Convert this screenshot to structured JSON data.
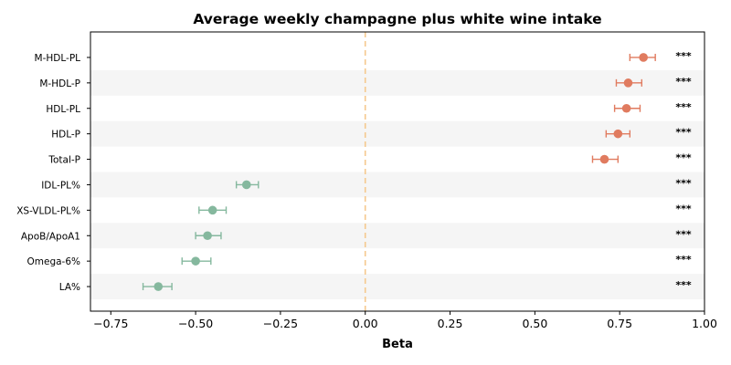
{
  "chart_data": {
    "type": "scatter",
    "subtype": "forest-plot",
    "title": "Average weekly champagne plus white wine intake",
    "xlabel": "Beta",
    "ylabel": "",
    "xlim": [
      -0.81,
      1.0
    ],
    "xticks": [
      -0.75,
      -0.5,
      -0.25,
      0.0,
      0.25,
      0.5,
      0.75,
      1.0
    ],
    "xtick_labels": [
      "−0.75",
      "−0.50",
      "−0.25",
      "0.00",
      "0.25",
      "0.50",
      "0.75",
      "1.00"
    ],
    "reference_line": 0.0,
    "reference_line_color": "#f5c98e",
    "positive_color": "#e07b5f",
    "negative_color": "#85b89e",
    "band_color": "#f5f5f5",
    "grid": false,
    "legend": "none",
    "items": [
      {
        "label": "M-HDL-PL",
        "beta": 0.82,
        "ci_low": 0.78,
        "ci_high": 0.855,
        "sig": "***"
      },
      {
        "label": "M-HDL-P",
        "beta": 0.775,
        "ci_low": 0.74,
        "ci_high": 0.815,
        "sig": "***"
      },
      {
        "label": "HDL-PL",
        "beta": 0.77,
        "ci_low": 0.735,
        "ci_high": 0.81,
        "sig": "***"
      },
      {
        "label": "HDL-P",
        "beta": 0.745,
        "ci_low": 0.71,
        "ci_high": 0.78,
        "sig": "***"
      },
      {
        "label": "Total-P",
        "beta": 0.705,
        "ci_low": 0.67,
        "ci_high": 0.745,
        "sig": "***"
      },
      {
        "label": "IDL-PL%",
        "beta": -0.35,
        "ci_low": -0.38,
        "ci_high": -0.315,
        "sig": "***"
      },
      {
        "label": "XS-VLDL-PL%",
        "beta": -0.45,
        "ci_low": -0.49,
        "ci_high": -0.41,
        "sig": "***"
      },
      {
        "label": "ApoB/ApoA1",
        "beta": -0.465,
        "ci_low": -0.5,
        "ci_high": -0.425,
        "sig": "***"
      },
      {
        "label": "Omega-6%",
        "beta": -0.5,
        "ci_low": -0.54,
        "ci_high": -0.455,
        "sig": "***"
      },
      {
        "label": "LA%",
        "beta": -0.61,
        "ci_low": -0.655,
        "ci_high": -0.57,
        "sig": "***"
      }
    ]
  }
}
